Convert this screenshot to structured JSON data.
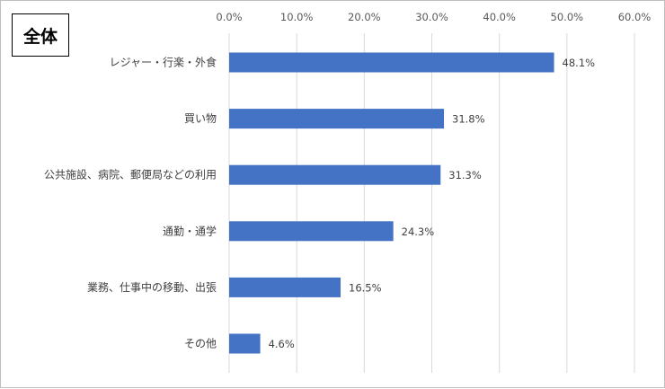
{
  "chart_data": {
    "type": "bar",
    "orientation": "horizontal",
    "title": "全体",
    "categories": [
      "レジャー・行楽・外食",
      "買い物",
      "公共施設、病院、郵便局などの利用",
      "通勤・通学",
      "業務、仕事中の移動、出張",
      "その他"
    ],
    "values": [
      48.1,
      31.8,
      31.3,
      24.3,
      16.5,
      4.6
    ],
    "data_labels": [
      "48.1%",
      "31.8%",
      "31.3%",
      "24.3%",
      "16.5%",
      "4.6%"
    ],
    "ticks": [
      0,
      10,
      20,
      30,
      40,
      50,
      60
    ],
    "tick_labels": [
      "0.0%",
      "10.0%",
      "20.0%",
      "30.0%",
      "40.0%",
      "50.0%",
      "60.0%"
    ],
    "xlim": [
      0,
      60
    ],
    "axis_position": "top",
    "grid": true,
    "bar_color": "#4472c4",
    "grid_color": "#d9d9d9"
  }
}
